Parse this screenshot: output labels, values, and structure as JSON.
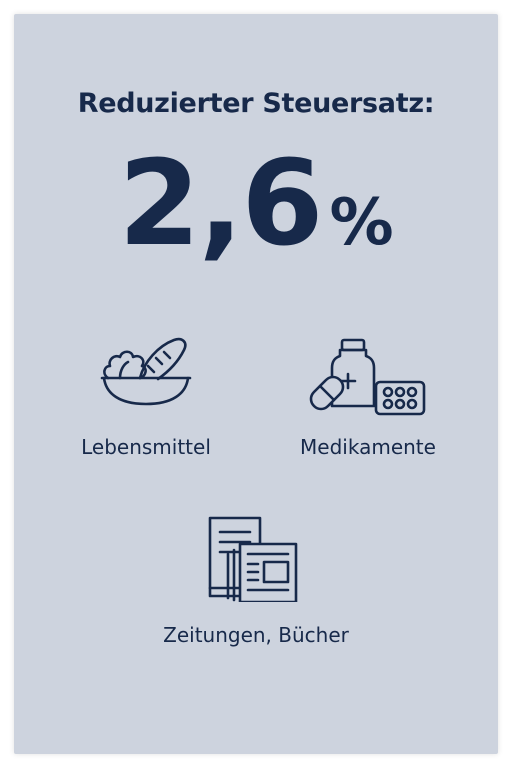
{
  "heading": "Reduzierter Steuersatz:",
  "rate": {
    "value": "2,6",
    "unit": "%"
  },
  "categories": [
    {
      "label": "Lebensmittel",
      "icon": "food-bowl-icon"
    },
    {
      "label": "Medikamente",
      "icon": "medicine-icon"
    },
    {
      "label": "Zeitungen, Bücher",
      "icon": "newspaper-book-icon"
    }
  ],
  "colors": {
    "background": "#cdd3de",
    "text": "#17294a"
  }
}
